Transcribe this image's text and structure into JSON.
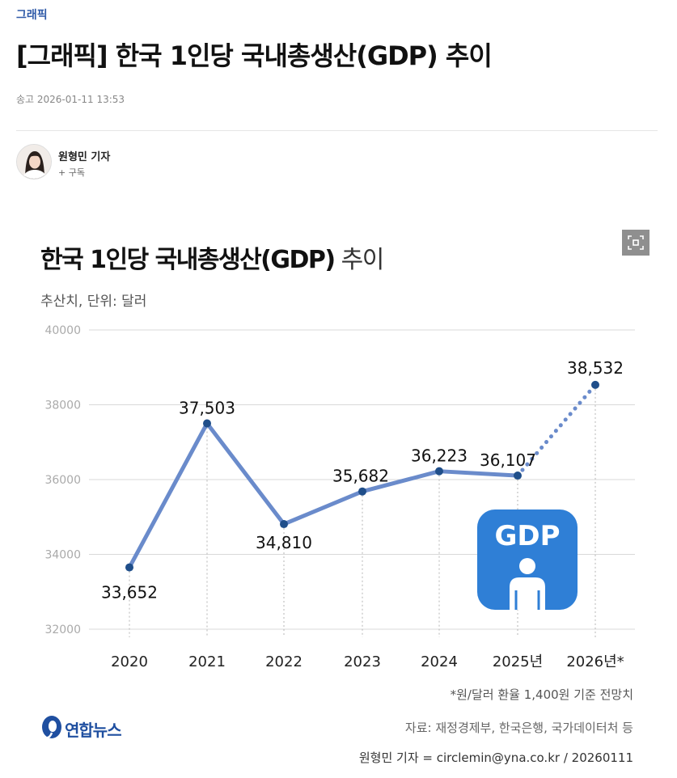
{
  "article": {
    "category": "그래픽",
    "headline": "[그래픽] 한국 1인당 국내총생산(GDP) 추이",
    "meta": "송고 2026-01-11 13:53",
    "author": {
      "name": "원형민 기자",
      "subscribe_label": "+ 구독"
    }
  },
  "graphic": {
    "title_main": "한국 1인당 국내총생산(GDP)",
    "title_suffix": " 추이",
    "subtitle": "추산치, 단위: 달러",
    "badge_text": "GDP",
    "footnote": "*원/달러 환율 1,400원 기준 전망치",
    "source": "자료: 재정경제부, 한국은행, 국가데이터처 등",
    "credit": "원형민 기자 = circlemin@yna.co.kr / 20260111",
    "logo_text": "연합뉴스"
  },
  "icons": {
    "expand": "expand-icon",
    "person": "person-icon",
    "logo": "yonhap-logo-icon"
  },
  "colors": {
    "line": "#6a8bcb",
    "dot": "#1f4e8a",
    "badge": "#2f7fd6",
    "grid": "#d9d9d9",
    "accent": "#2f5aa8"
  },
  "chart_data": {
    "type": "line",
    "categories": [
      "2020",
      "2021",
      "2022",
      "2023",
      "2024",
      "2025년",
      "2026년*"
    ],
    "values": [
      33652,
      37503,
      34810,
      35682,
      36223,
      36107,
      38532
    ],
    "value_labels": [
      "33,652",
      "37,503",
      "34,810",
      "35,682",
      "36,223",
      "36,107",
      "38,532"
    ],
    "projected_from_index": 5,
    "yticks": [
      "32000",
      "34000",
      "36000",
      "38000",
      "40000"
    ],
    "ylim": [
      32000,
      40000
    ],
    "grid": true,
    "title": "한국 1인당 국내총생산(GDP) 추이",
    "ylabel": "",
    "xlabel": ""
  }
}
